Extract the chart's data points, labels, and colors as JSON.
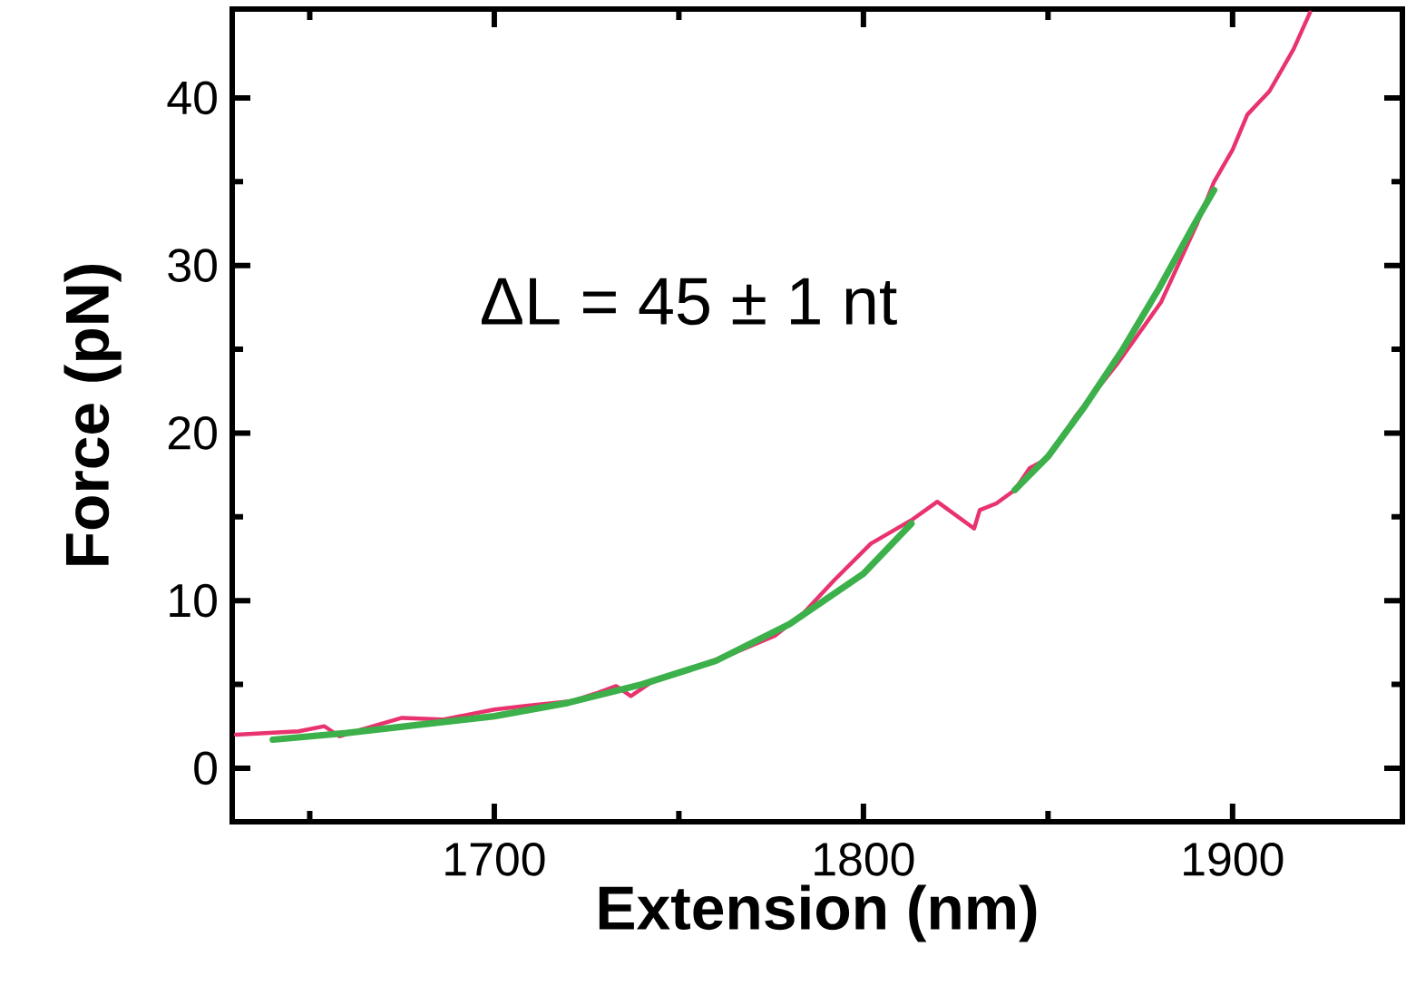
{
  "chart_data": {
    "type": "line",
    "xlabel": "Extension (nm)",
    "ylabel": "Force (pN)",
    "annotations": [
      "ΔL = 45 ± 1 nt"
    ],
    "xlim": [
      1629,
      1946
    ],
    "ylim": [
      -3.2,
      45.3
    ],
    "xticks": [
      {
        "value": 1650,
        "label": null
      },
      1700,
      {
        "value": 1750,
        "label": null
      },
      1800,
      {
        "value": 1850,
        "label": null
      },
      1900
    ],
    "yticks": [
      0,
      {
        "value": 5,
        "label": null
      },
      10,
      {
        "value": 15,
        "label": null
      },
      20,
      {
        "value": 25,
        "label": null
      },
      30,
      {
        "value": 35,
        "label": null
      },
      40
    ],
    "grid": false,
    "marker": "none",
    "line_style": "solid",
    "series": [
      {
        "color": "#e8336e",
        "x": [
          1630,
          1647,
          1654,
          1658,
          1664,
          1675,
          1686,
          1700,
          1708,
          1721,
          1728,
          1733,
          1737,
          1743,
          1763,
          1776,
          1784,
          1792,
          1802,
          1813,
          1820,
          1830,
          1831.5,
          1836,
          1841,
          1845,
          1850,
          1857.5,
          1869,
          1880.6,
          1890.4,
          1895,
          1900,
          1904,
          1910,
          1916.5,
          1921
        ],
        "values": [
          2.0,
          2.2,
          2.5,
          1.9,
          2.3,
          3.0,
          2.9,
          3.5,
          3.7,
          4.0,
          4.5,
          4.9,
          4.3,
          5.2,
          6.7,
          7.9,
          9.3,
          11.2,
          13.4,
          14.8,
          15.9,
          14.3,
          15.4,
          15.8,
          16.6,
          17.9,
          18.5,
          21.0,
          24.2,
          27.8,
          32.5,
          35.0,
          36.9,
          39.0,
          40.4,
          42.9,
          45.1
        ]
      },
      {
        "color": "#3cb04a",
        "x": [
          1640,
          1660,
          1680,
          1700,
          1720,
          1740,
          1760,
          1780,
          1800,
          1813,
          1827,
          1841,
          1850,
          1860,
          1870,
          1880,
          1890,
          1895
        ],
        "values": [
          1.7,
          2.1,
          2.6,
          3.1,
          3.9,
          5.0,
          6.4,
          8.6,
          11.6,
          14.6,
          null,
          16.6,
          18.6,
          21.6,
          24.9,
          28.6,
          32.6,
          34.5
        ]
      }
    ]
  }
}
